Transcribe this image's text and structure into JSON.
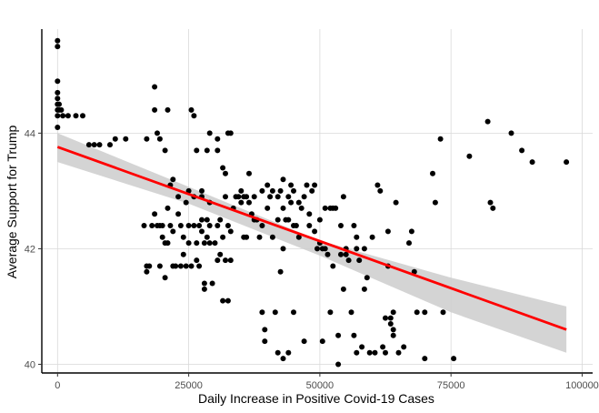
{
  "chart_data": {
    "type": "scatter",
    "title": "",
    "xlabel": "Daily Increase in Positive Covid-19 Cases",
    "ylabel": "Average Support for Trump",
    "xlim": [
      -3000,
      102000
    ],
    "ylim": [
      39.85,
      45.8
    ],
    "x_ticks": [
      0,
      25000,
      50000,
      75000,
      100000
    ],
    "x_tick_labels": [
      "0",
      "25000",
      "50000",
      "75000",
      "100000"
    ],
    "y_ticks": [
      40,
      42,
      44
    ],
    "y_tick_labels": [
      "40",
      "42",
      "44"
    ],
    "grid": true,
    "point_color": "#000000",
    "fit_line": {
      "x": [
        0,
        97000
      ],
      "y": [
        43.76,
        40.6
      ],
      "color": "#ff0000"
    },
    "confidence_band": {
      "x": [
        0,
        25000,
        50000,
        75000,
        97000
      ],
      "lower": [
        43.5,
        42.78,
        41.88,
        40.9,
        40.2
      ],
      "upper": [
        44.0,
        43.07,
        42.14,
        41.5,
        41.0
      ],
      "color": "#cccccc"
    },
    "points": [
      [
        0,
        45.6
      ],
      [
        0,
        45.5
      ],
      [
        0,
        44.9
      ],
      [
        0,
        44.7
      ],
      [
        0,
        44.6
      ],
      [
        0,
        44.5
      ],
      [
        0,
        44.4
      ],
      [
        0,
        44.3
      ],
      [
        0,
        44.1
      ],
      [
        300,
        44.5
      ],
      [
        300,
        44.4
      ],
      [
        700,
        44.4
      ],
      [
        1000,
        44.3
      ],
      [
        2000,
        44.3
      ],
      [
        3500,
        44.3
      ],
      [
        4800,
        44.3
      ],
      [
        6000,
        43.8
      ],
      [
        7000,
        43.8
      ],
      [
        8000,
        43.8
      ],
      [
        10000,
        43.8
      ],
      [
        11000,
        43.9
      ],
      [
        13000,
        43.9
      ],
      [
        17000,
        43.9
      ],
      [
        18500,
        44.8
      ],
      [
        18500,
        44.4
      ],
      [
        19000,
        44.0
      ],
      [
        19500,
        43.9
      ],
      [
        20500,
        43.7
      ],
      [
        21000,
        44.4
      ],
      [
        25500,
        44.4
      ],
      [
        26000,
        44.3
      ],
      [
        26500,
        43.7
      ],
      [
        29000,
        44.0
      ],
      [
        28500,
        43.7
      ],
      [
        30500,
        43.7
      ],
      [
        30500,
        43.9
      ],
      [
        31500,
        43.4
      ],
      [
        32000,
        43.3
      ],
      [
        32500,
        44.0
      ],
      [
        33000,
        44.0
      ],
      [
        16500,
        42.4
      ],
      [
        17000,
        41.7
      ],
      [
        17000,
        41.6
      ],
      [
        17500,
        41.7
      ],
      [
        18000,
        42.4
      ],
      [
        18500,
        42.6
      ],
      [
        19000,
        42.4
      ],
      [
        19500,
        42.4
      ],
      [
        19500,
        41.7
      ],
      [
        20000,
        42.4
      ],
      [
        20000,
        42.2
      ],
      [
        20500,
        42.1
      ],
      [
        20500,
        41.5
      ],
      [
        21000,
        42.1
      ],
      [
        21000,
        42.7
      ],
      [
        21500,
        42.4
      ],
      [
        21500,
        43.1
      ],
      [
        22000,
        43.2
      ],
      [
        22000,
        42.3
      ],
      [
        22000,
        41.7
      ],
      [
        22500,
        41.7
      ],
      [
        23000,
        42.9
      ],
      [
        23000,
        42.6
      ],
      [
        23500,
        42.4
      ],
      [
        23500,
        41.7
      ],
      [
        24000,
        42.2
      ],
      [
        24000,
        41.9
      ],
      [
        24500,
        42.8
      ],
      [
        24500,
        41.7
      ],
      [
        25000,
        43.0
      ],
      [
        25000,
        42.4
      ],
      [
        25000,
        42.1
      ],
      [
        25500,
        41.7
      ],
      [
        26000,
        42.9
      ],
      [
        26000,
        42.4
      ],
      [
        26500,
        42.1
      ],
      [
        26500,
        41.8
      ],
      [
        27000,
        42.4
      ],
      [
        27000,
        41.7
      ],
      [
        27500,
        43.0
      ],
      [
        27500,
        42.9
      ],
      [
        27500,
        42.5
      ],
      [
        27500,
        42.3
      ],
      [
        28000,
        42.1
      ],
      [
        28000,
        41.4
      ],
      [
        28000,
        41.3
      ],
      [
        28500,
        42.5
      ],
      [
        28500,
        42.2
      ],
      [
        29000,
        42.8
      ],
      [
        29000,
        42.4
      ],
      [
        29000,
        42.1
      ],
      [
        29500,
        41.4
      ],
      [
        30000,
        42.1
      ],
      [
        30500,
        42.4
      ],
      [
        30500,
        41.8
      ],
      [
        31000,
        42.5
      ],
      [
        31000,
        41.9
      ],
      [
        31500,
        42.2
      ],
      [
        31500,
        41.1
      ],
      [
        32000,
        42.9
      ],
      [
        32000,
        41.8
      ],
      [
        32500,
        42.4
      ],
      [
        32500,
        41.1
      ],
      [
        33000,
        42.3
      ],
      [
        33000,
        41.8
      ],
      [
        33500,
        42.7
      ],
      [
        34000,
        42.9
      ],
      [
        34500,
        42.9
      ],
      [
        35000,
        43.0
      ],
      [
        35000,
        42.8
      ],
      [
        35500,
        42.9
      ],
      [
        35500,
        42.2
      ],
      [
        36000,
        42.9
      ],
      [
        36000,
        42.2
      ],
      [
        36500,
        43.3
      ],
      [
        36500,
        42.8
      ],
      [
        37000,
        42.6
      ],
      [
        37500,
        42.9
      ],
      [
        37500,
        42.5
      ],
      [
        38000,
        42.5
      ],
      [
        38500,
        42.2
      ],
      [
        39000,
        43.0
      ],
      [
        39000,
        42.4
      ],
      [
        39000,
        40.9
      ],
      [
        39500,
        40.6
      ],
      [
        39500,
        40.4
      ],
      [
        40000,
        42.7
      ],
      [
        40000,
        43.1
      ],
      [
        40500,
        42.9
      ],
      [
        41000,
        43.0
      ],
      [
        41000,
        42.2
      ],
      [
        41500,
        40.9
      ],
      [
        42000,
        42.9
      ],
      [
        42000,
        42.5
      ],
      [
        42000,
        40.2
      ],
      [
        42500,
        43.0
      ],
      [
        42500,
        41.6
      ],
      [
        43000,
        43.2
      ],
      [
        43000,
        42.7
      ],
      [
        43000,
        42.0
      ],
      [
        43000,
        40.1
      ],
      [
        43500,
        42.5
      ],
      [
        44000,
        42.9
      ],
      [
        44000,
        42.5
      ],
      [
        44000,
        40.2
      ],
      [
        44500,
        43.1
      ],
      [
        44500,
        42.8
      ],
      [
        45000,
        43.0
      ],
      [
        45000,
        42.4
      ],
      [
        45000,
        40.9
      ],
      [
        45500,
        42.4
      ],
      [
        46000,
        42.8
      ],
      [
        46000,
        42.2
      ],
      [
        46500,
        42.7
      ],
      [
        47000,
        42.9
      ],
      [
        47000,
        40.4
      ],
      [
        47500,
        43.1
      ],
      [
        48000,
        42.6
      ],
      [
        48000,
        42.4
      ],
      [
        48500,
        43.0
      ],
      [
        49000,
        43.1
      ],
      [
        49000,
        42.3
      ],
      [
        49500,
        42.0
      ],
      [
        50000,
        42.5
      ],
      [
        50000,
        42.1
      ],
      [
        50500,
        42.0
      ],
      [
        50500,
        40.4
      ],
      [
        51000,
        42.7
      ],
      [
        51000,
        42.0
      ],
      [
        51500,
        41.9
      ],
      [
        52000,
        42.7
      ],
      [
        52000,
        40.9
      ],
      [
        52500,
        42.7
      ],
      [
        52500,
        41.7
      ],
      [
        53000,
        42.7
      ],
      [
        53500,
        40.0
      ],
      [
        53500,
        40.5
      ],
      [
        54000,
        42.4
      ],
      [
        54000,
        41.9
      ],
      [
        54500,
        42.9
      ],
      [
        54500,
        41.3
      ],
      [
        55000,
        42.0
      ],
      [
        55000,
        41.9
      ],
      [
        55500,
        41.8
      ],
      [
        56000,
        40.9
      ],
      [
        56500,
        42.4
      ],
      [
        56500,
        40.5
      ],
      [
        57000,
        42.2
      ],
      [
        57000,
        42.0
      ],
      [
        57000,
        40.2
      ],
      [
        57500,
        41.8
      ],
      [
        58000,
        40.3
      ],
      [
        58500,
        42.0
      ],
      [
        58500,
        41.3
      ],
      [
        59000,
        41.5
      ],
      [
        59500,
        40.2
      ],
      [
        60000,
        42.2
      ],
      [
        60500,
        40.2
      ],
      [
        61000,
        43.1
      ],
      [
        61500,
        43.0
      ],
      [
        62000,
        40.3
      ],
      [
        62500,
        40.8
      ],
      [
        62500,
        40.2
      ],
      [
        63000,
        42.3
      ],
      [
        63000,
        41.7
      ],
      [
        63500,
        40.8
      ],
      [
        63500,
        40.7
      ],
      [
        64000,
        40.9
      ],
      [
        64000,
        40.5
      ],
      [
        64000,
        40.6
      ],
      [
        64500,
        42.8
      ],
      [
        65000,
        40.2
      ],
      [
        66000,
        40.3
      ],
      [
        67000,
        42.1
      ],
      [
        67500,
        42.3
      ],
      [
        68000,
        41.6
      ],
      [
        68500,
        40.9
      ],
      [
        70000,
        40.9
      ],
      [
        70000,
        40.1
      ],
      [
        71500,
        43.3
      ],
      [
        72000,
        42.8
      ],
      [
        73000,
        43.9
      ],
      [
        73500,
        40.9
      ],
      [
        75500,
        40.1
      ],
      [
        78500,
        43.6
      ],
      [
        82000,
        44.2
      ],
      [
        82500,
        42.8
      ],
      [
        83000,
        42.7
      ],
      [
        86500,
        44.0
      ],
      [
        88500,
        43.7
      ],
      [
        90500,
        43.5
      ],
      [
        97000,
        43.5
      ]
    ]
  }
}
